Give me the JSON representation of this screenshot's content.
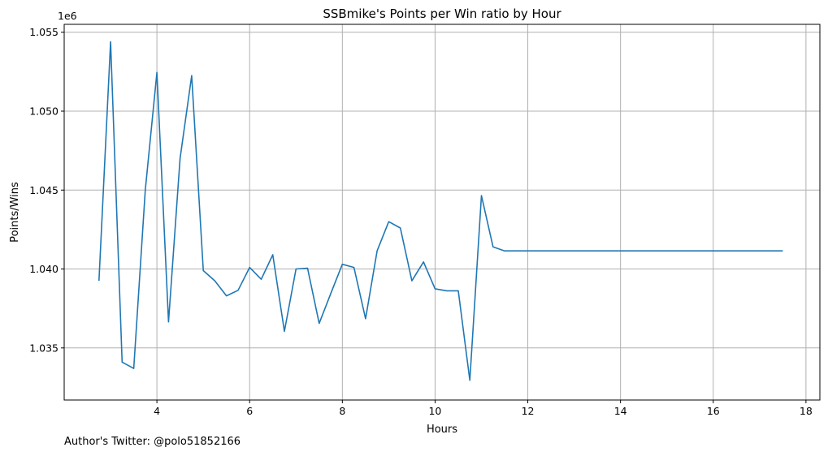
{
  "chart_data": {
    "type": "line",
    "title": "SSBmike's Points per Win ratio by Hour",
    "xlabel": "Hours",
    "ylabel": "Points/Wins",
    "offset_text": "1e6",
    "xlim": [
      2.0,
      18.3
    ],
    "ylim": [
      1.0317,
      1.0555
    ],
    "xticks": [
      4,
      6,
      8,
      10,
      12,
      14,
      16,
      18
    ],
    "xtick_labels": [
      "4",
      "6",
      "8",
      "10",
      "12",
      "14",
      "16",
      "18"
    ],
    "yticks": [
      1.035,
      1.04,
      1.045,
      1.05,
      1.055
    ],
    "ytick_labels": [
      "1.035",
      "1.040",
      "1.045",
      "1.050",
      "1.055"
    ],
    "grid": true,
    "line_color": "#1f77b4",
    "series": [
      {
        "x": [
          2.75,
          3.0,
          3.25,
          3.5,
          3.75,
          4.0,
          4.25,
          4.5,
          4.75,
          5.0,
          5.25,
          5.5,
          5.75,
          6.0,
          6.25,
          6.5,
          6.75,
          7.0,
          7.25,
          7.5,
          7.75,
          8.0,
          8.25,
          8.5,
          8.75,
          9.0,
          9.25,
          9.5,
          9.75,
          10.0,
          10.25,
          10.5,
          10.75,
          11.0,
          11.25,
          11.5,
          11.75,
          12.0,
          12.5,
          13.0,
          13.5,
          14.0,
          14.5,
          15.0,
          15.5,
          16.0,
          16.5,
          17.0,
          17.5
        ],
        "y": [
          1.03925,
          1.0544,
          1.0341,
          1.0337,
          1.045,
          1.05245,
          1.03665,
          1.047,
          1.05225,
          1.0399,
          1.03925,
          1.0383,
          1.03865,
          1.0401,
          1.03935,
          1.0409,
          1.03605,
          1.04,
          1.04005,
          1.03655,
          1.03845,
          1.0403,
          1.0401,
          1.03685,
          1.04115,
          1.043,
          1.0426,
          1.03925,
          1.04045,
          1.03875,
          1.03862,
          1.03862,
          1.03295,
          1.04465,
          1.0414,
          1.04115,
          1.04115,
          1.04115,
          1.04115,
          1.04115,
          1.04115,
          1.04115,
          1.04115,
          1.04115,
          1.04115,
          1.04115,
          1.04115,
          1.04115,
          1.04115
        ]
      }
    ]
  },
  "footer": {
    "text": "Author's Twitter: @polo51852166"
  }
}
